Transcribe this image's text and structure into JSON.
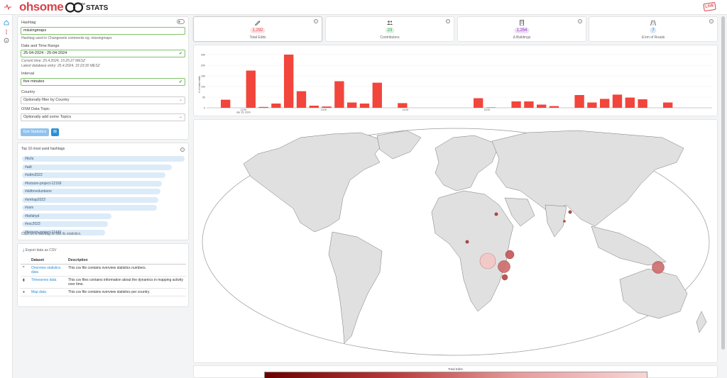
{
  "app": {
    "logo_text": "ohsome",
    "logo_now": "now",
    "logo_stats": "STATS",
    "live_badge": "LIVE"
  },
  "sidebar_icons": [
    "home-icon",
    "dots-icon",
    "info-icon"
  ],
  "filter": {
    "hashtag_label": "Hashtag",
    "hashtag_value": "missingmaps",
    "hashtag_hint": "Hashtag used in Changesets comments eg. missingmaps",
    "date_label": "Date and Time Range",
    "date_value": "25-04-2024 - 25-04-2024",
    "current_time": "Current time: 25.4.2024, 15:25:27 MESZ",
    "latest_entry": "Latest database entry: 25.4.2024, 15:23:30 MESZ",
    "interval_label": "Interval",
    "interval_value": "five minutes",
    "country_label": "Country",
    "country_placeholder": "Optionally filter by Country",
    "topic_label": "OSM Data Topic",
    "topic_placeholder": "Optionally add some Topics",
    "get_button": "Get Statistics",
    "share_button": "⊞"
  },
  "top_hashtags": {
    "title": "Top 10 most used hashtags",
    "items": [
      {
        "label": "#bcfa",
        "share": 1.0
      },
      {
        "label": "#adt",
        "share": 0.92
      },
      {
        "label": "#sdtm2022",
        "share": 0.88
      },
      {
        "label": "#hotosm-project-12169",
        "share": 0.86
      },
      {
        "label": "#sldtmvolunteers",
        "share": 0.85
      },
      {
        "label": "#smhap2023",
        "share": 0.84
      },
      {
        "label": "#osm",
        "share": 0.83
      },
      {
        "label": "#bsfahyd",
        "share": 0.55
      },
      {
        "label": "#esc2023",
        "share": 0.53
      },
      {
        "label": "#hotosm-project-11449",
        "share": 0.51
      }
    ],
    "hint": "Click on a hashtag to see its statistics."
  },
  "export": {
    "title": "Export data as CSV",
    "col_dataset": "Dataset",
    "col_description": "Description",
    "rows": [
      {
        "icon": "quote-icon",
        "name": "Overview statistics data",
        "desc": "This csv file contains overview statistics numbers."
      },
      {
        "icon": "bar-chart-icon",
        "name": "Timeseries data",
        "desc": "This csv files contains information about the dynamics in mapping activity over time."
      },
      {
        "icon": "globe-icon",
        "name": "Map data",
        "desc": "This csv file contains overview statistics per country."
      }
    ]
  },
  "stats": [
    {
      "icon": "edit-icon",
      "value": "1,292",
      "label": "Total Edits",
      "color": "#e8484e",
      "bg": "#fde2e3"
    },
    {
      "icon": "users-icon",
      "value": "23",
      "label": "Contributors",
      "color": "#2f9e44",
      "bg": "#dff3e3"
    },
    {
      "icon": "building-icon",
      "value": "1,254",
      "label": "Δ Buildings",
      "color": "#8e3bb8",
      "bg": "#f0def8"
    },
    {
      "icon": "road-icon",
      "value": "7",
      "label": "Δ km of Roads",
      "color": "#2a6fb0",
      "bg": "#dde9f7"
    }
  ],
  "chart_data": {
    "type": "bar",
    "ylabel": "# of total edits",
    "ylim": [
      0,
      250
    ],
    "yticks": [
      0,
      50,
      100,
      150,
      200,
      250
    ],
    "xtick_labels": [
      "12:00",
      "Apr 25, 2024",
      "13:00",
      "14:00",
      "15:00"
    ],
    "color": "#f2453b",
    "values": [
      0,
      38,
      0,
      175,
      4,
      20,
      250,
      78,
      10,
      6,
      125,
      25,
      20,
      118,
      0,
      22,
      0,
      0,
      0,
      0,
      0,
      45,
      2,
      0,
      30,
      30,
      15,
      8,
      0,
      60,
      25,
      42,
      62,
      48,
      40,
      0,
      25,
      0,
      0,
      0
    ]
  },
  "map": {
    "legend_title": "Total Edits"
  }
}
